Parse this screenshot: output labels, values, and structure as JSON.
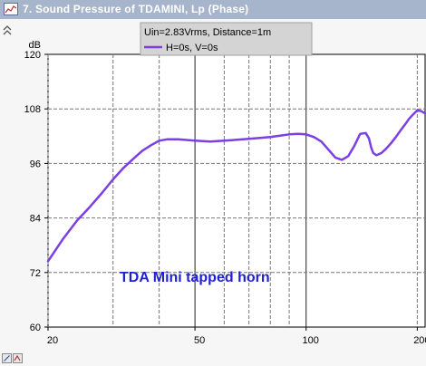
{
  "window": {
    "title": "7. Sound Pressure of TDAMINI, Lp (Phase)"
  },
  "icons": [
    "chart-window-icon",
    "collapse-arrows-icon",
    "tool-a-icon",
    "tool-b-icon"
  ],
  "chart_data": {
    "type": "line",
    "x_scale": "log",
    "xlim": [
      20,
      210
    ],
    "ylim": [
      60,
      120
    ],
    "ylabel": "dB",
    "x_ticks": [
      20,
      50,
      100,
      200
    ],
    "x_tick_labels": [
      "20",
      "50",
      "100",
      "200"
    ],
    "y_ticks": [
      60,
      72,
      84,
      96,
      108,
      120
    ],
    "y_tick_labels": [
      "60",
      "72",
      "84",
      "96",
      "108",
      "120"
    ],
    "grid": true,
    "legend": {
      "position": "top-center",
      "header": "Uin=2.83Vrms, Distance=1m",
      "entries": [
        "H=0s, V=0s"
      ]
    },
    "annotation": "TDA Mini tapped horn",
    "series": [
      {
        "name": "H=0s, V=0s",
        "color": "#7b3fe4",
        "x": [
          20,
          22,
          24,
          26,
          28,
          30,
          32,
          34,
          36,
          38,
          40,
          42,
          45,
          50,
          55,
          60,
          65,
          70,
          75,
          80,
          85,
          90,
          95,
          100,
          105,
          110,
          115,
          120,
          125,
          130,
          135,
          140,
          145,
          148,
          150,
          152,
          155,
          160,
          165,
          170,
          175,
          180,
          185,
          190,
          195,
          200,
          205,
          210
        ],
        "y": [
          74.5,
          79.5,
          83.5,
          86.5,
          89.5,
          92.5,
          95,
          97,
          98.8,
          100,
          101,
          101.3,
          101.3,
          101,
          100.8,
          101,
          101.2,
          101.4,
          101.6,
          101.8,
          102.1,
          102.4,
          102.5,
          102.4,
          101.8,
          100.8,
          99,
          97.3,
          96.8,
          97.6,
          99.8,
          102.5,
          102.7,
          101.5,
          99.5,
          98.3,
          97.8,
          98.3,
          99.3,
          100.5,
          101.8,
          103.2,
          104.5,
          105.8,
          106.8,
          107.7,
          107.5,
          107.0
        ]
      }
    ]
  }
}
